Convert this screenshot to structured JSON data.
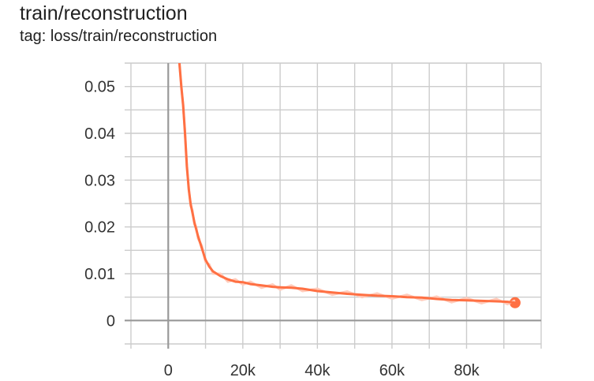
{
  "card": {
    "title": "train/reconstruction",
    "tag": "tag: loss/train/reconstruction"
  },
  "colors": {
    "series": "#ff7043",
    "series_raw": "#ffccbc",
    "grid": "#cccccc",
    "zero_axis": "#999999"
  },
  "chart_data": {
    "type": "line",
    "title": "train/reconstruction",
    "subtitle": "tag: loss/train/reconstruction",
    "xlabel": "",
    "ylabel": "",
    "xlim": [
      -10000,
      100000
    ],
    "ylim": [
      -0.005,
      0.055
    ],
    "grid": true,
    "x_ticks": [
      0,
      20000,
      40000,
      60000,
      80000
    ],
    "x_tick_labels": [
      "0",
      "20k",
      "40k",
      "60k",
      "80k"
    ],
    "y_ticks": [
      0,
      0.01,
      0.02,
      0.03,
      0.04,
      0.05
    ],
    "y_tick_labels": [
      "0",
      "0.01",
      "0.02",
      "0.03",
      "0.04",
      "0.05"
    ],
    "series": [
      {
        "x": [
          2500,
          3000,
          3500,
          4000,
          4500,
          5000,
          5500,
          6000,
          6500,
          7000,
          7500,
          8000,
          9000,
          10000,
          11000,
          12000,
          14000,
          16000,
          18000,
          20000,
          22000,
          25000,
          28000,
          30000,
          33000,
          36000,
          40000,
          44000,
          48000,
          52000,
          56000,
          60000,
          64000,
          68000,
          72000,
          76000,
          80000,
          84000,
          88000,
          91000,
          93000
        ],
        "y": [
          0.06,
          0.055,
          0.05,
          0.046,
          0.04,
          0.033,
          0.028,
          0.025,
          0.023,
          0.021,
          0.0195,
          0.018,
          0.0155,
          0.013,
          0.0115,
          0.0105,
          0.0095,
          0.0088,
          0.0083,
          0.0082,
          0.0078,
          0.0075,
          0.0072,
          0.0071,
          0.007,
          0.0068,
          0.0063,
          0.006,
          0.0057,
          0.0055,
          0.0053,
          0.0052,
          0.005,
          0.0049,
          0.0046,
          0.0044,
          0.0043,
          0.0042,
          0.0041,
          0.004,
          0.0038
        ]
      }
    ]
  }
}
